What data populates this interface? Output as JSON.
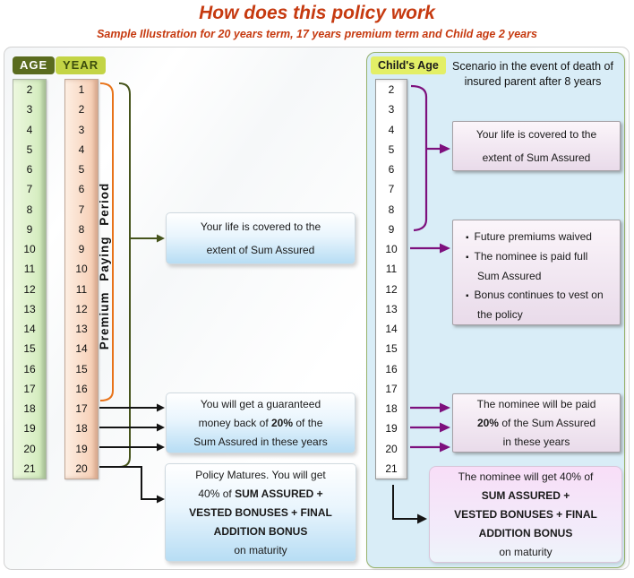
{
  "title": "How does this policy work",
  "subtitle": "Sample Illustration for 20 years term, 17 years premium term and Child age 2 years",
  "colors": {
    "title-red": "#c63a10",
    "age-badge-bg": "#5a6b1f",
    "year-badge-bg": "#c3d445",
    "child-badge-bg": "#e3ef67",
    "orange-bracket": "#e8731a",
    "green-bracket": "#46541c",
    "purple-arrow": "#7d107d",
    "right-panel-bg": "#d9edf7",
    "right-panel-border": "#96b26c",
    "blue-box-bottom": "#b7ddf4",
    "pink-box-bottom": "#e9dbea",
    "pink4-top": "#f8def8"
  },
  "left": {
    "age_label": "AGE",
    "year_label": "YEAR",
    "ages": [
      2,
      3,
      4,
      5,
      6,
      7,
      8,
      9,
      10,
      11,
      12,
      13,
      14,
      15,
      16,
      17,
      18,
      19,
      20,
      21
    ],
    "years": [
      1,
      2,
      3,
      4,
      5,
      6,
      7,
      8,
      9,
      10,
      11,
      12,
      13,
      14,
      15,
      16,
      17,
      18,
      19,
      20
    ],
    "premium_period_label": "Premium Paying Period",
    "boxes": {
      "life_cover": [
        [
          "Your life is covered to the"
        ],
        [
          "extent of Sum Assured"
        ]
      ],
      "money_back": [
        [
          "You will get a guaranteed"
        ],
        [
          "money back of ",
          {
            "text": "20%",
            "bold": true
          },
          " of the"
        ],
        [
          "Sum Assured in these years"
        ]
      ],
      "maturity": [
        [
          "Policy Matures. You will get"
        ],
        [
          "40% of ",
          {
            "text": "SUM ASSURED +",
            "bold": true
          }
        ],
        [
          {
            "text": "VESTED BONUSES + FINAL",
            "bold": true
          }
        ],
        [
          {
            "text": "ADDITION BONUS",
            "bold": true
          }
        ],
        [
          "on maturity"
        ]
      ]
    }
  },
  "right": {
    "childs_age_label": "Child's Age",
    "scenario_heading": [
      [
        "Scenario in the event of death of"
      ],
      [
        "insured parent after 8 years"
      ]
    ],
    "child_ages": [
      2,
      3,
      4,
      5,
      6,
      7,
      8,
      9,
      10,
      11,
      12,
      13,
      14,
      15,
      16,
      17,
      18,
      19,
      20,
      21
    ],
    "boxes": {
      "life_cover": [
        [
          "Your life is covered to the"
        ],
        [
          "extent of Sum Assured"
        ]
      ],
      "death_benefits": [
        [
          "Future premiums waived"
        ],
        [
          "The nominee is paid full Sum Assured"
        ],
        [
          "Bonus continues to vest on the policy"
        ]
      ],
      "money_back": [
        [
          "The nominee will be paid"
        ],
        [
          {
            "text": "20%",
            "bold": true
          },
          " of the Sum Assured"
        ],
        [
          "in these years"
        ]
      ],
      "maturity": [
        [
          "The nominee will get 40% of"
        ],
        [
          {
            "text": "SUM ASSURED +",
            "bold": true
          }
        ],
        [
          {
            "text": "VESTED BONUSES + FINAL",
            "bold": true
          }
        ],
        [
          {
            "text": "ADDITION BONUS",
            "bold": true
          }
        ],
        [
          "on maturity"
        ]
      ]
    }
  }
}
